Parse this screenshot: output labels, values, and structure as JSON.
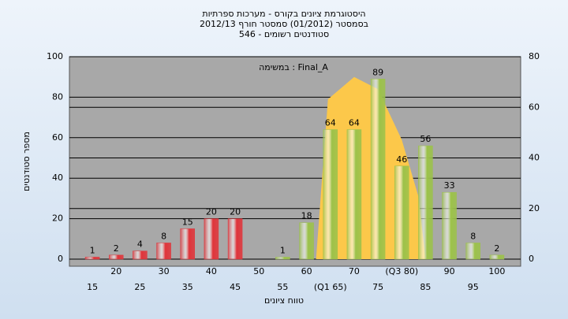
{
  "chart_data": {
    "type": "bar",
    "title": [
      "היסטוגרמת ציונים בקורס - מערכות ספרתיות",
      "בסמסטר  (01/2012)  סמסטר חורף  2012/13",
      "סטודנטים רשומים - 546"
    ],
    "annotation": "במשימה : Final_A",
    "y_label": "מספר סטודנטים",
    "x_label": "טווח ציונים",
    "categories": [
      "15",
      "20",
      "25",
      "30",
      "35",
      "40",
      "45",
      "50",
      "55",
      "60",
      "(Q1 65)",
      "70",
      "75",
      "(Q3 80)",
      "85",
      "90",
      "95",
      "100"
    ],
    "values": [
      1,
      2,
      4,
      8,
      15,
      20,
      20,
      null,
      1,
      18,
      64,
      64,
      89,
      46,
      56,
      33,
      8,
      2
    ],
    "colors": [
      "#e0343a",
      "#e0343a",
      "#e0343a",
      "#e0343a",
      "#e0343a",
      "#e0343a",
      "#e0343a",
      "#e0343a",
      "#9cc24a",
      "#9cc24a",
      "#9cc24a",
      "#9cc24a",
      "#9cc24a",
      "#9cc24a",
      "#9cc24a",
      "#9cc24a",
      "#9cc24a",
      "#9cc24a"
    ],
    "curve": {
      "x": [
        62,
        64.5,
        70,
        75,
        80,
        83.5,
        85
      ],
      "values": [
        0,
        79,
        90,
        84,
        59,
        31,
        0
      ],
      "color": "#fcc84a"
    },
    "xlim": [
      12.5,
      102.5
    ],
    "ylim": [
      0,
      100
    ],
    "yticks": [
      0,
      20,
      40,
      60,
      80,
      100
    ],
    "y2lim": [
      0,
      80
    ],
    "y2ticks": [
      0,
      20,
      40,
      60,
      80
    ],
    "grid": true
  }
}
